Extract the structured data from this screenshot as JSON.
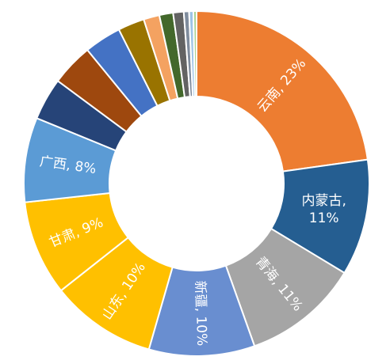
{
  "chart_data": {
    "type": "pie",
    "donut": true,
    "start": "top",
    "direction": "clockwise",
    "slices": [
      {
        "label": "云南",
        "value": 23,
        "color": "#ED7D31",
        "text": [
          "云南, 23%"
        ]
      },
      {
        "label": "内蒙古",
        "value": 11,
        "color": "#255E91",
        "text": [
          "内蒙古,",
          "11%"
        ]
      },
      {
        "label": "青海",
        "value": 11,
        "color": "#A5A5A5",
        "text": [
          "青海, 11%"
        ]
      },
      {
        "label": "新疆",
        "value": 10,
        "color": "#698ED0",
        "text": [
          "新疆, 10%"
        ]
      },
      {
        "label": "山东",
        "value": 10,
        "color": "#FFC000",
        "text": [
          "山东, 10%"
        ]
      },
      {
        "label": "甘肃",
        "value": 9,
        "color": "#FFC000",
        "text": [
          "甘肃, 9%"
        ]
      },
      {
        "label": "广西",
        "value": 8,
        "color": "#5B9BD5",
        "text": [
          "广西, 8%"
        ]
      },
      {
        "label": "",
        "value": 4,
        "color": "#264478",
        "text": []
      },
      {
        "label": "",
        "value": 4,
        "color": "#9E480E",
        "text": []
      },
      {
        "label": "",
        "value": 3.5,
        "color": "#4472C4",
        "text": []
      },
      {
        "label": "",
        "value": 2.5,
        "color": "#997300",
        "text": []
      },
      {
        "label": "",
        "value": 1.5,
        "color": "#F4A261",
        "text": []
      },
      {
        "label": "",
        "value": 1.3,
        "color": "#43682B",
        "text": []
      },
      {
        "label": "",
        "value": 1,
        "color": "#636363",
        "text": []
      },
      {
        "label": "",
        "value": 0.5,
        "color": "#7F8C9D",
        "text": []
      },
      {
        "label": "",
        "value": 0.4,
        "color": "#9DC3E6",
        "text": []
      },
      {
        "label": "",
        "value": 0.3,
        "color": "#A9D18E",
        "text": []
      }
    ]
  }
}
